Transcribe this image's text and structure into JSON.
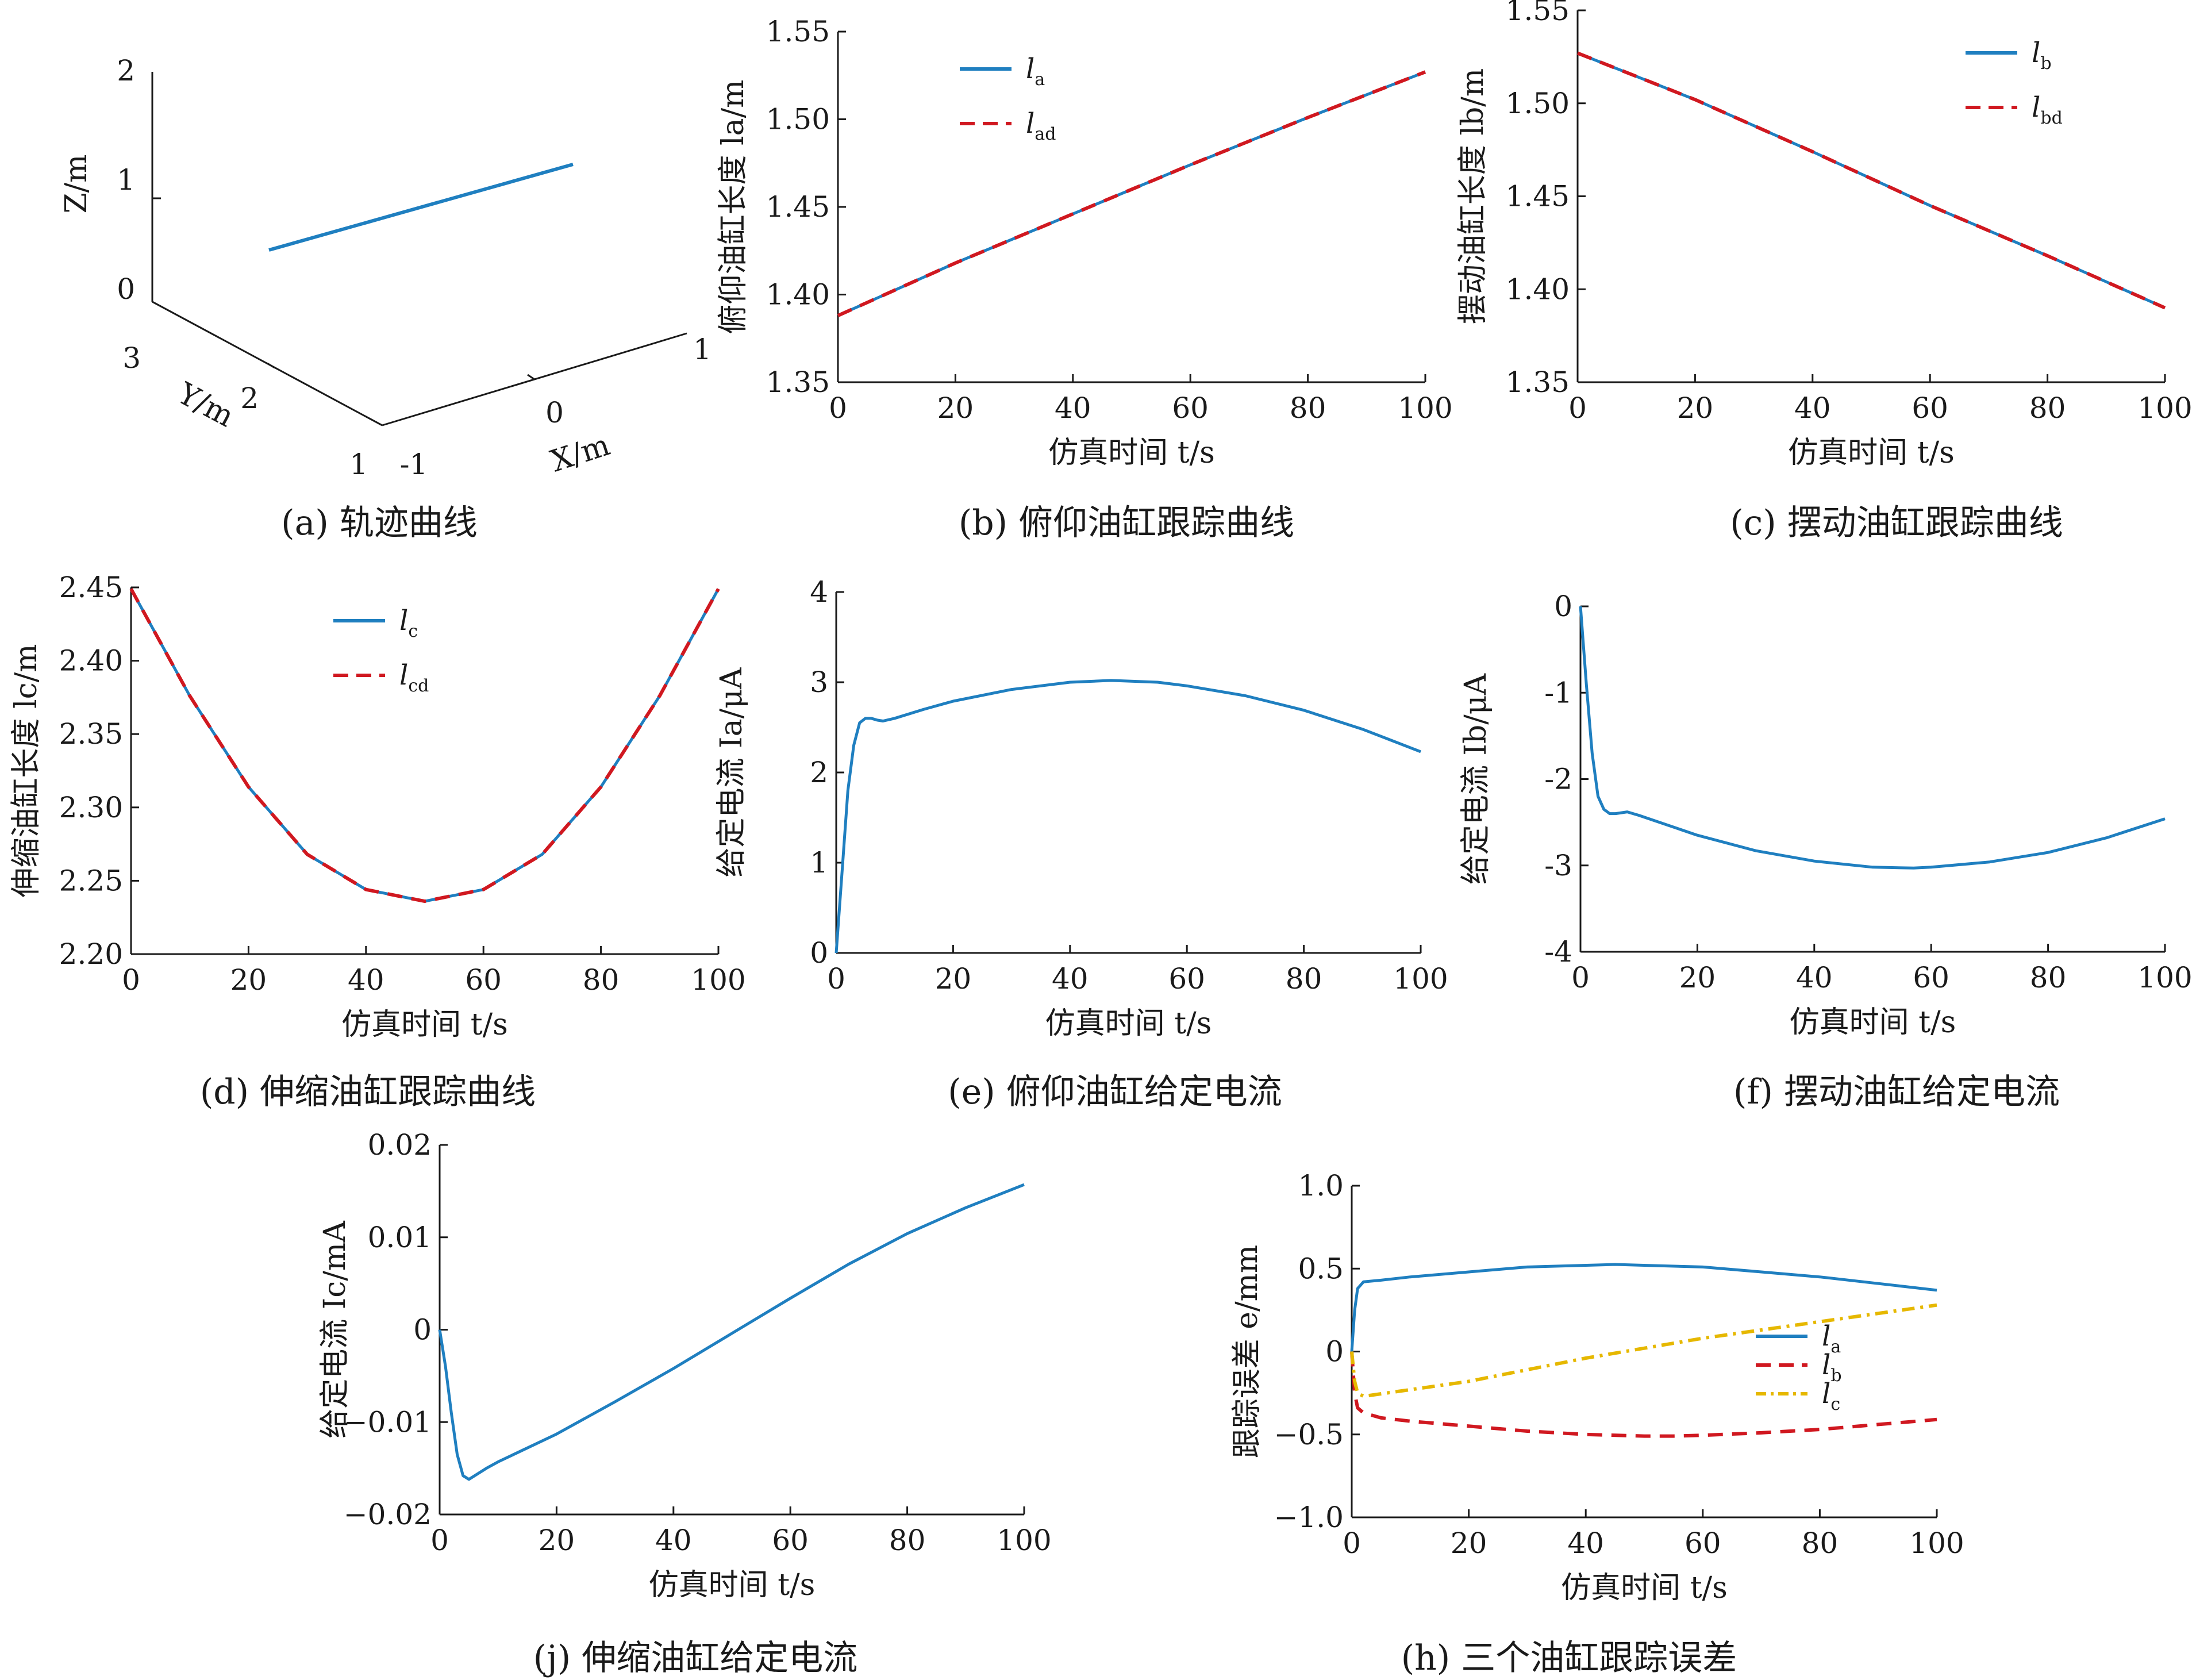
{
  "colors": {
    "blue": "#1f7fc0",
    "red": "#d01820",
    "yellow": "#e6b800",
    "axis": "#1a1a1a"
  },
  "panels": [
    {
      "id": "a",
      "caption": "(a) 轨迹曲线"
    },
    {
      "id": "b",
      "caption": "(b) 俯仰油缸跟踪曲线"
    },
    {
      "id": "c",
      "caption": "(c) 摆动油缸跟踪曲线"
    },
    {
      "id": "d",
      "caption": "(d) 伸缩油缸跟踪曲线"
    },
    {
      "id": "e",
      "caption": "(e) 俯仰油缸给定电流"
    },
    {
      "id": "f",
      "caption": "(f) 摆动油缸给定电流"
    },
    {
      "id": "j",
      "caption": "(j) 伸缩油缸给定电流"
    },
    {
      "id": "h",
      "caption": "(h) 三个油缸跟踪误差"
    }
  ],
  "chart_data": [
    {
      "id": "a",
      "type": "line",
      "zlabel": "Z/m",
      "ylabel": "Y/m",
      "xlabel": "X/m",
      "zticks": [
        "0",
        "1",
        "2"
      ],
      "yticks": [
        "1",
        "2",
        "3"
      ],
      "xticks": [
        "-1",
        "0",
        "1"
      ],
      "series": [
        {
          "name": "trajectory",
          "color": "blue"
        }
      ]
    },
    {
      "id": "b",
      "type": "line",
      "xlabel": "仿真时间 t/s",
      "ylabel": "俯仰油缸长度 la/m",
      "xlim": [
        0,
        100
      ],
      "ylim": [
        1.35,
        1.55
      ],
      "xticks": [
        "0",
        "20",
        "40",
        "60",
        "80",
        "100"
      ],
      "yticks": [
        "1.35",
        "1.40",
        "1.45",
        "1.50",
        "1.55"
      ],
      "legend_position": "top-left",
      "series": [
        {
          "name": "la",
          "label": "l",
          "sub": "a",
          "color": "blue",
          "style": "solid",
          "x": [
            0,
            20,
            40,
            60,
            80,
            100
          ],
          "y": [
            1.388,
            1.418,
            1.446,
            1.474,
            1.501,
            1.527
          ]
        },
        {
          "name": "lad",
          "label": "l",
          "sub": "ad",
          "color": "red",
          "style": "dashed",
          "x": [
            0,
            20,
            40,
            60,
            80,
            100
          ],
          "y": [
            1.388,
            1.418,
            1.446,
            1.474,
            1.501,
            1.527
          ]
        }
      ]
    },
    {
      "id": "c",
      "type": "line",
      "xlabel": "仿真时间 t/s",
      "ylabel": "摆动油缸长度 lb/m",
      "xlim": [
        0,
        100
      ],
      "ylim": [
        1.35,
        1.55
      ],
      "xticks": [
        "0",
        "20",
        "40",
        "60",
        "80",
        "100"
      ],
      "yticks": [
        "1.35",
        "1.40",
        "1.45",
        "1.50",
        "1.55"
      ],
      "legend_position": "top-right",
      "series": [
        {
          "name": "lb",
          "label": "l",
          "sub": "b",
          "color": "blue",
          "style": "solid",
          "x": [
            0,
            20,
            40,
            60,
            80,
            100
          ],
          "y": [
            1.527,
            1.502,
            1.474,
            1.445,
            1.418,
            1.39
          ]
        },
        {
          "name": "lbd",
          "label": "l",
          "sub": "bd",
          "color": "red",
          "style": "dashed",
          "x": [
            0,
            20,
            40,
            60,
            80,
            100
          ],
          "y": [
            1.527,
            1.502,
            1.474,
            1.445,
            1.418,
            1.39
          ]
        }
      ]
    },
    {
      "id": "d",
      "type": "line",
      "xlabel": "仿真时间 t/s",
      "ylabel": "伸缩油缸长度 lc/m",
      "xlim": [
        0,
        100
      ],
      "ylim": [
        2.2,
        2.45
      ],
      "xticks": [
        "0",
        "20",
        "40",
        "60",
        "80",
        "100"
      ],
      "yticks": [
        "2.20",
        "2.25",
        "2.30",
        "2.35",
        "2.40",
        "2.45"
      ],
      "legend_position": "top-center",
      "series": [
        {
          "name": "lc",
          "label": "l",
          "sub": "c",
          "color": "blue",
          "style": "solid",
          "x": [
            0,
            10,
            20,
            30,
            40,
            50,
            60,
            70,
            80,
            90,
            100
          ],
          "y": [
            2.449,
            2.376,
            2.314,
            2.268,
            2.244,
            2.236,
            2.244,
            2.268,
            2.314,
            2.376,
            2.449
          ]
        },
        {
          "name": "lcd",
          "label": "l",
          "sub": "cd",
          "color": "red",
          "style": "dashed",
          "x": [
            0,
            10,
            20,
            30,
            40,
            50,
            60,
            70,
            80,
            90,
            100
          ],
          "y": [
            2.449,
            2.376,
            2.314,
            2.268,
            2.244,
            2.236,
            2.244,
            2.268,
            2.314,
            2.376,
            2.449
          ]
        }
      ]
    },
    {
      "id": "e",
      "type": "line",
      "xlabel": "仿真时间 t/s",
      "ylabel": "给定电流 Ia/μA",
      "xlim": [
        0,
        100
      ],
      "ylim": [
        0,
        4
      ],
      "xticks": [
        "0",
        "20",
        "40",
        "60",
        "80",
        "100"
      ],
      "yticks": [
        "0",
        "1",
        "2",
        "3",
        "4"
      ],
      "series": [
        {
          "name": "Ia",
          "color": "blue",
          "style": "solid",
          "x": [
            0,
            1,
            2,
            3,
            4,
            5,
            6,
            7,
            8,
            10,
            15,
            20,
            30,
            40,
            47,
            55,
            60,
            70,
            80,
            90,
            100
          ],
          "y": [
            0,
            0.9,
            1.8,
            2.3,
            2.55,
            2.6,
            2.6,
            2.58,
            2.57,
            2.6,
            2.7,
            2.79,
            2.92,
            3.0,
            3.02,
            3.0,
            2.96,
            2.85,
            2.69,
            2.48,
            2.23
          ]
        }
      ]
    },
    {
      "id": "f",
      "type": "line",
      "xlabel": "仿真时间 t/s",
      "ylabel": "给定电流 Ib/μA",
      "xlim": [
        0,
        100
      ],
      "ylim": [
        -4,
        0
      ],
      "xticks": [
        "0",
        "20",
        "40",
        "60",
        "80",
        "100"
      ],
      "yticks": [
        "-4",
        "-3",
        "-2",
        "-1",
        "0"
      ],
      "series": [
        {
          "name": "Ib",
          "color": "blue",
          "style": "solid",
          "x": [
            0,
            1,
            2,
            3,
            4,
            5,
            6,
            8,
            10,
            20,
            30,
            40,
            50,
            57,
            60,
            70,
            80,
            90,
            100
          ],
          "y": [
            0,
            -0.9,
            -1.7,
            -2.2,
            -2.35,
            -2.4,
            -2.4,
            -2.38,
            -2.42,
            -2.65,
            -2.83,
            -2.95,
            -3.02,
            -3.03,
            -3.02,
            -2.96,
            -2.85,
            -2.68,
            -2.46
          ]
        }
      ]
    },
    {
      "id": "j",
      "type": "line",
      "xlabel": "仿真时间 t/s",
      "ylabel": "给定电流 Ic/mA",
      "xlim": [
        0,
        100
      ],
      "ylim": [
        -0.02,
        0.02
      ],
      "xticks": [
        "0",
        "20",
        "40",
        "60",
        "80",
        "100"
      ],
      "yticks": [
        "−0.02",
        "−0.01",
        "0",
        "0.01",
        "0.02"
      ],
      "series": [
        {
          "name": "Ic",
          "color": "blue",
          "style": "solid",
          "x": [
            0,
            1,
            2,
            3,
            4,
            5,
            6,
            8,
            10,
            20,
            30,
            40,
            50,
            60,
            70,
            80,
            90,
            100
          ],
          "y": [
            0,
            -0.004,
            -0.009,
            -0.0135,
            -0.0158,
            -0.0162,
            -0.0158,
            -0.015,
            -0.0143,
            -0.0113,
            -0.0078,
            -0.0042,
            -0.0004,
            0.0034,
            0.0071,
            0.0104,
            0.0132,
            0.0157
          ]
        }
      ]
    },
    {
      "id": "h",
      "type": "line",
      "xlabel": "仿真时间 t/s",
      "ylabel": "跟踪误差 e/mm",
      "xlim": [
        0,
        100
      ],
      "ylim": [
        -1.0,
        1.0
      ],
      "xticks": [
        "0",
        "20",
        "40",
        "60",
        "80",
        "100"
      ],
      "yticks": [
        "−1.0",
        "−0.5",
        "0",
        "0.5",
        "1.0"
      ],
      "legend_position": "right",
      "series": [
        {
          "name": "la",
          "label": "l",
          "sub": "a",
          "color": "blue",
          "style": "solid",
          "x": [
            0,
            0.5,
            1,
            2,
            5,
            10,
            20,
            30,
            40,
            45,
            50,
            60,
            70,
            80,
            90,
            100
          ],
          "y": [
            0,
            0.25,
            0.38,
            0.42,
            0.43,
            0.45,
            0.48,
            0.51,
            0.52,
            0.525,
            0.52,
            0.51,
            0.48,
            0.45,
            0.41,
            0.37
          ]
        },
        {
          "name": "lb",
          "label": "l",
          "sub": "b",
          "color": "red",
          "style": "dashed",
          "x": [
            0,
            0.5,
            1,
            2,
            5,
            10,
            20,
            30,
            40,
            50,
            55,
            60,
            70,
            80,
            90,
            100
          ],
          "y": [
            0,
            -0.25,
            -0.34,
            -0.37,
            -0.4,
            -0.42,
            -0.45,
            -0.48,
            -0.5,
            -0.51,
            -0.51,
            -0.505,
            -0.49,
            -0.47,
            -0.44,
            -0.41
          ]
        },
        {
          "name": "lc",
          "label": "l",
          "sub": "c",
          "color": "yellow",
          "style": "dashdot",
          "x": [
            0,
            0.5,
            1,
            2,
            10,
            20,
            40,
            60,
            80,
            100
          ],
          "y": [
            0,
            -0.18,
            -0.25,
            -0.27,
            -0.23,
            -0.18,
            -0.04,
            0.08,
            0.18,
            0.28
          ]
        }
      ]
    }
  ]
}
